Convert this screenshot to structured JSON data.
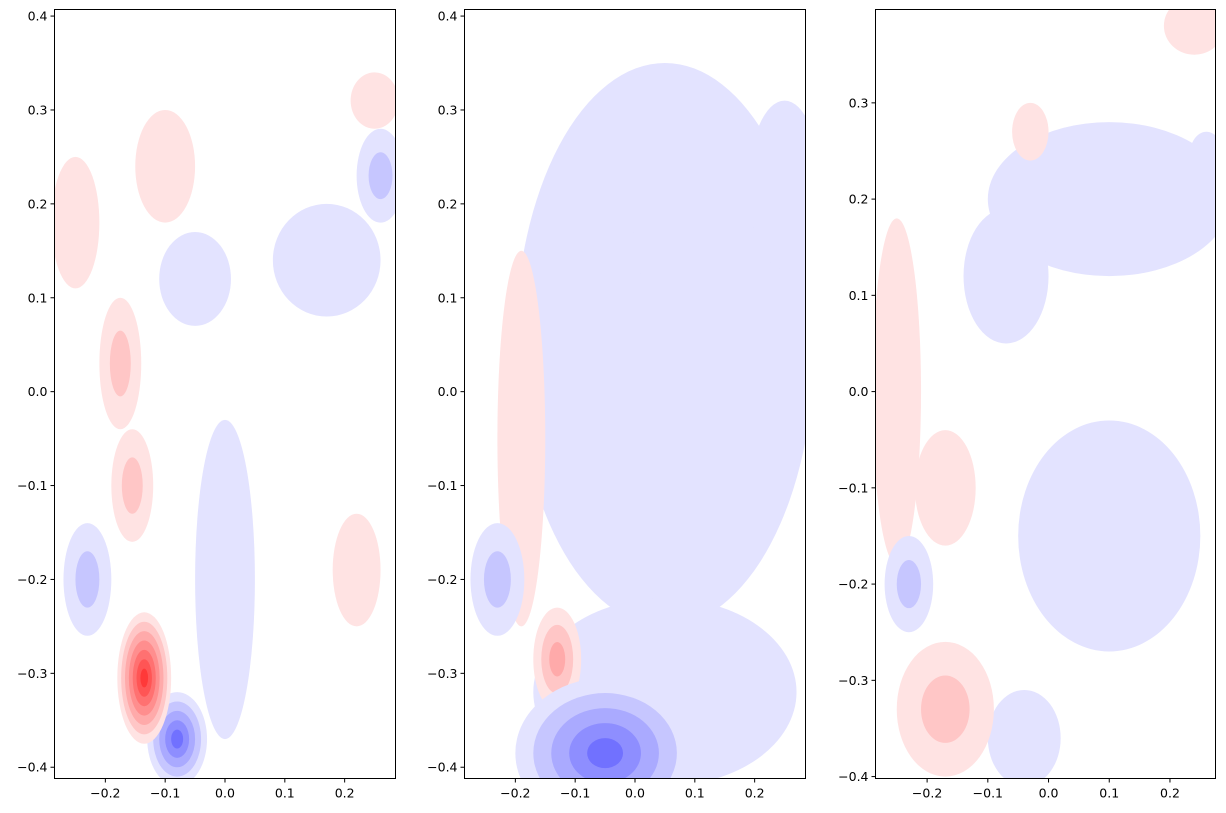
{
  "chart_data": [
    {
      "type": "contour",
      "xlim": [
        -0.285,
        0.285
      ],
      "ylim": [
        -0.412,
        0.407
      ],
      "x_ticks": [
        -0.2,
        -0.1,
        0.0,
        0.1,
        0.2
      ],
      "x_tick_labels": [
        "−0.2",
        "−0.1",
        "0.0",
        "0.1",
        "0.2"
      ],
      "y_ticks": [
        -0.4,
        -0.3,
        -0.2,
        -0.1,
        0.0,
        0.1,
        0.2,
        0.3,
        0.4
      ],
      "y_tick_labels": [
        "−0.4",
        "−0.3",
        "−0.2",
        "−0.1",
        "0.0",
        "0.1",
        "0.2",
        "0.3",
        "0.4"
      ],
      "colormap": "bwr",
      "features": [
        {
          "sign": "positive",
          "x": -0.135,
          "y": -0.305,
          "rx": 0.045,
          "ry": 0.07,
          "intensity": 0.78
        },
        {
          "sign": "positive",
          "x": -0.175,
          "y": 0.03,
          "rx": 0.035,
          "ry": 0.07,
          "intensity": 0.22
        },
        {
          "sign": "positive",
          "x": -0.155,
          "y": -0.1,
          "rx": 0.035,
          "ry": 0.06,
          "intensity": 0.2
        },
        {
          "sign": "positive",
          "x": 0.22,
          "y": -0.19,
          "rx": 0.04,
          "ry": 0.06,
          "intensity": 0.06
        },
        {
          "sign": "positive",
          "x": 0.25,
          "y": 0.31,
          "rx": 0.04,
          "ry": 0.03,
          "intensity": 0.1
        },
        {
          "sign": "positive",
          "x": -0.1,
          "y": 0.24,
          "rx": 0.05,
          "ry": 0.06,
          "intensity": 0.06
        },
        {
          "sign": "positive",
          "x": -0.25,
          "y": 0.18,
          "rx": 0.04,
          "ry": 0.07,
          "intensity": 0.06
        },
        {
          "sign": "negative",
          "x": -0.08,
          "y": -0.37,
          "rx": 0.05,
          "ry": 0.05,
          "intensity": 0.5
        },
        {
          "sign": "negative",
          "x": -0.23,
          "y": -0.2,
          "rx": 0.04,
          "ry": 0.06,
          "intensity": 0.22
        },
        {
          "sign": "negative",
          "x": -0.05,
          "y": 0.12,
          "rx": 0.06,
          "ry": 0.05,
          "intensity": 0.16
        },
        {
          "sign": "negative",
          "x": 0.26,
          "y": 0.23,
          "rx": 0.04,
          "ry": 0.05,
          "intensity": 0.2
        },
        {
          "sign": "negative",
          "x": 0.0,
          "y": -0.2,
          "rx": 0.05,
          "ry": 0.17,
          "intensity": 0.06
        },
        {
          "sign": "negative",
          "x": 0.17,
          "y": 0.14,
          "rx": 0.09,
          "ry": 0.06,
          "intensity": 0.06
        }
      ]
    },
    {
      "type": "contour",
      "xlim": [
        -0.285,
        0.285
      ],
      "ylim": [
        -0.412,
        0.407
      ],
      "x_ticks": [
        -0.2,
        -0.1,
        0.0,
        0.1,
        0.2
      ],
      "x_tick_labels": [
        "−0.2",
        "−0.1",
        "0.0",
        "0.1",
        "0.2"
      ],
      "y_ticks": [
        -0.4,
        -0.3,
        -0.2,
        -0.1,
        0.0,
        0.1,
        0.2,
        0.3,
        0.4
      ],
      "y_tick_labels": [
        "−0.4",
        "−0.3",
        "−0.2",
        "−0.1",
        "0.0",
        "0.1",
        "0.2",
        "0.3",
        "0.4"
      ],
      "colormap": "bwr",
      "features": [
        {
          "sign": "positive",
          "x": -0.13,
          "y": -0.285,
          "rx": 0.04,
          "ry": 0.055,
          "intensity": 0.32
        },
        {
          "sign": "positive",
          "x": -0.19,
          "y": -0.05,
          "rx": 0.04,
          "ry": 0.2,
          "intensity": 0.07
        },
        {
          "sign": "negative",
          "x": -0.05,
          "y": -0.385,
          "rx": 0.15,
          "ry": 0.08,
          "intensity": 0.55
        },
        {
          "sign": "negative",
          "x": 0.05,
          "y": -0.32,
          "rx": 0.22,
          "ry": 0.1,
          "intensity": 0.14
        },
        {
          "sign": "negative",
          "x": -0.23,
          "y": -0.2,
          "rx": 0.045,
          "ry": 0.06,
          "intensity": 0.18
        },
        {
          "sign": "negative",
          "x": -0.05,
          "y": 0.12,
          "rx": 0.06,
          "ry": 0.08,
          "intensity": 0.12
        },
        {
          "sign": "negative",
          "x": 0.25,
          "y": 0.22,
          "rx": 0.06,
          "ry": 0.09,
          "intensity": 0.16
        },
        {
          "sign": "negative",
          "x": 0.05,
          "y": 0.05,
          "rx": 0.25,
          "ry": 0.3,
          "intensity": 0.06
        }
      ]
    },
    {
      "type": "contour",
      "xlim": [
        -0.285,
        0.275
      ],
      "ylim": [
        -0.402,
        0.397
      ],
      "x_ticks": [
        -0.2,
        -0.1,
        0.0,
        0.1,
        0.2
      ],
      "x_tick_labels": [
        "−0.2",
        "−0.1",
        "0.0",
        "0.1",
        "0.2"
      ],
      "y_ticks": [
        -0.4,
        -0.3,
        -0.2,
        -0.1,
        0.0,
        0.1,
        0.2,
        0.3
      ],
      "y_tick_labels": [
        "−0.4",
        "−0.3",
        "−0.2",
        "−0.1",
        "0.0",
        "0.1",
        "0.2",
        "0.3"
      ],
      "colormap": "bwr",
      "features": [
        {
          "sign": "positive",
          "x": -0.17,
          "y": -0.33,
          "rx": 0.08,
          "ry": 0.07,
          "intensity": 0.2
        },
        {
          "sign": "positive",
          "x": -0.17,
          "y": -0.1,
          "rx": 0.05,
          "ry": 0.06,
          "intensity": 0.14
        },
        {
          "sign": "positive",
          "x": -0.25,
          "y": 0.0,
          "rx": 0.04,
          "ry": 0.18,
          "intensity": 0.06
        },
        {
          "sign": "positive",
          "x": -0.03,
          "y": 0.27,
          "rx": 0.03,
          "ry": 0.03,
          "intensity": 0.08
        },
        {
          "sign": "positive",
          "x": 0.24,
          "y": 0.38,
          "rx": 0.05,
          "ry": 0.03,
          "intensity": 0.07
        },
        {
          "sign": "negative",
          "x": -0.23,
          "y": -0.2,
          "rx": 0.04,
          "ry": 0.05,
          "intensity": 0.2
        },
        {
          "sign": "negative",
          "x": -0.04,
          "y": -0.36,
          "rx": 0.06,
          "ry": 0.05,
          "intensity": 0.14
        },
        {
          "sign": "negative",
          "x": -0.07,
          "y": 0.12,
          "rx": 0.07,
          "ry": 0.07,
          "intensity": 0.12
        },
        {
          "sign": "negative",
          "x": 0.26,
          "y": 0.24,
          "rx": 0.03,
          "ry": 0.03,
          "intensity": 0.14
        },
        {
          "sign": "negative",
          "x": 0.1,
          "y": -0.15,
          "rx": 0.15,
          "ry": 0.12,
          "intensity": 0.05
        },
        {
          "sign": "negative",
          "x": 0.1,
          "y": 0.2,
          "rx": 0.2,
          "ry": 0.08,
          "intensity": 0.05
        }
      ]
    }
  ]
}
